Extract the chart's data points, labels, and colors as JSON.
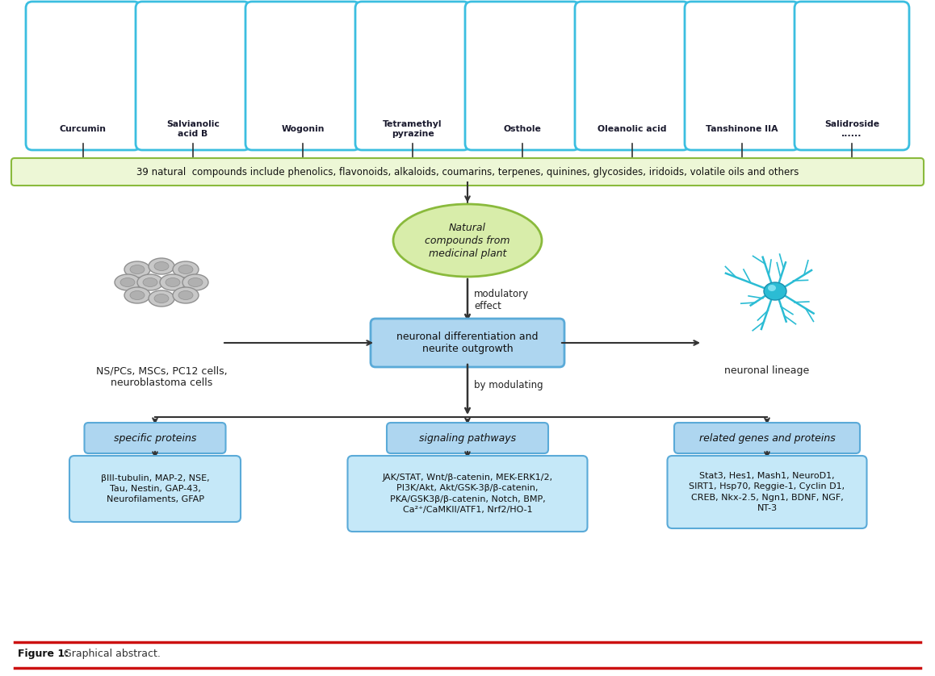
{
  "compound_names": [
    "Curcumin",
    "Salvianolic\nacid B",
    "Wogonin",
    "Tetramethyl\npyrazine",
    "Osthole",
    "Oleanolic acid",
    "Tanshinone IIA",
    "Salidroside\n......"
  ],
  "green_box_text": "39 natural  compounds include phenolics, flavonoids, alkaloids, coumarins, terpenes, quinines, glycosides, iridoids, volatile oils and others",
  "oval_text": "Natural\ncompounds from\nmedicinal plant",
  "center_box_text": "neuronal differentiation and\nneurite outgrowth",
  "left_label": "NS/PCs, MSCs, PC12 cells,\nneuroblastoma cells",
  "right_label": "neuronal lineage",
  "arrow_label1": "modulatory\neffect",
  "arrow_label2": "by modulating",
  "sub_box1_title": "specific proteins",
  "sub_box2_title": "signaling pathways",
  "sub_box3_title": "related genes and proteins",
  "sub_box1_content": "βIII-tubulin, MAP-2, NSE,\nTau, Nestin, GAP-43,\nNeurofilaments, GFAP",
  "sub_box2_content": "JAK/STAT, Wnt/β-catenin, MEK-ERK1/2,\nPI3K/Akt, Akt/GSK-3β/β-catenin,\nPKA/GSK3β/β-catenin, Notch, BMP,\nCa²⁺/CaMKII/ATF1, Nrf2/HO-1",
  "sub_box3_content": "Stat3, Hes1, Mash1, NeuroD1,\nSIRT1, Hsp70, Reggie-1, Cyclin D1,\nCREB, Nkx-2.5, Ngn1, BDNF, NGF,\nNT-3",
  "bg_color": "#ffffff",
  "compound_box_fill": "#ffffff",
  "compound_box_edge": "#3bbee0",
  "green_box_fill": "#edf7d6",
  "green_box_edge": "#8aba3c",
  "oval_fill": "#d8edaa",
  "oval_edge": "#8aba3c",
  "center_box_fill": "#aed6f0",
  "center_box_edge": "#5aaad8",
  "sub_title_fill": "#aed6f0",
  "sub_title_edge": "#5aaad8",
  "sub_content_fill": "#c5e8f8",
  "sub_content_edge": "#5aaad8",
  "arrow_color": "#333333",
  "red_line_color": "#cc1111",
  "figure_bold": "Figure 1:",
  "figure_normal": " Graphical abstract.",
  "neuron_color": "#2bbcd4",
  "cell_fill": "#c8c8c8",
  "cell_edge": "#909090",
  "cell_inner_fill": "#b0b0b0"
}
